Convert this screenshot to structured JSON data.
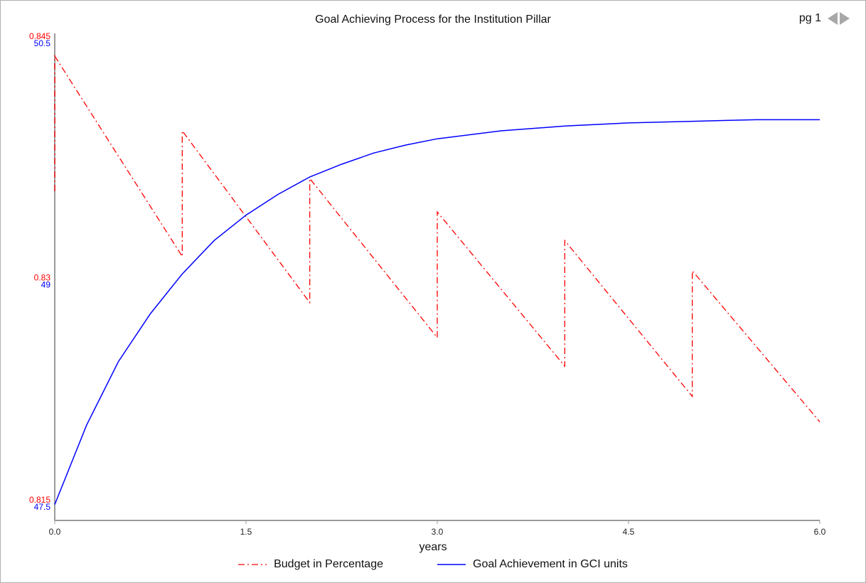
{
  "header": {
    "title": "Goal Achieving Process for the Institution Pillar",
    "page_label": "pg 1"
  },
  "chart_data": {
    "type": "line",
    "title": "Goal Achieving Process for the Institution Pillar",
    "xlabel": "years",
    "xlim": [
      0,
      6
    ],
    "x_ticks": [
      "0.0",
      "1.5",
      "3.0",
      "4.5",
      "6.0"
    ],
    "left_axes": [
      {
        "color": "#ff0000",
        "ylim": [
          0.815,
          0.845
        ],
        "tick_labels": {
          "min": "0.815",
          "mid": "0.83",
          "max": "0.845"
        }
      },
      {
        "color": "#0000ff",
        "ylim": [
          47.5,
          50.5
        ],
        "tick_labels": {
          "min": "47.5",
          "mid": "49",
          "max": "50.5"
        }
      }
    ],
    "series": [
      {
        "name": "Budget in Percentage",
        "axis": 0,
        "color": "#ff0000",
        "style": "dash-dot",
        "points": [
          [
            0,
            0.8357
          ],
          [
            0,
            0.8442
          ],
          [
            1,
            0.8316
          ],
          [
            1,
            0.8395
          ],
          [
            2,
            0.8287
          ],
          [
            2,
            0.8365
          ],
          [
            3,
            0.8265
          ],
          [
            3,
            0.8344
          ],
          [
            4,
            0.8247
          ],
          [
            4,
            0.8326
          ],
          [
            5,
            0.8228
          ],
          [
            5,
            0.8307
          ],
          [
            6,
            0.8212
          ]
        ]
      },
      {
        "name": "Goal Achievement in GCI units",
        "axis": 1,
        "color": "#0000ff",
        "style": "solid",
        "points": [
          [
            0,
            47.6
          ],
          [
            0.25,
            48.1
          ],
          [
            0.5,
            48.5
          ],
          [
            0.75,
            48.8
          ],
          [
            1,
            49.05
          ],
          [
            1.25,
            49.26
          ],
          [
            1.5,
            49.42
          ],
          [
            1.75,
            49.55
          ],
          [
            2,
            49.66
          ],
          [
            2.25,
            49.74
          ],
          [
            2.5,
            49.81
          ],
          [
            2.75,
            49.86
          ],
          [
            3,
            49.9
          ],
          [
            3.5,
            49.95
          ],
          [
            4,
            49.98
          ],
          [
            4.5,
            50.0
          ],
          [
            5,
            50.01
          ],
          [
            5.5,
            50.02
          ],
          [
            6,
            50.02
          ]
        ]
      }
    ],
    "grid": false,
    "legend_position": "bottom"
  }
}
